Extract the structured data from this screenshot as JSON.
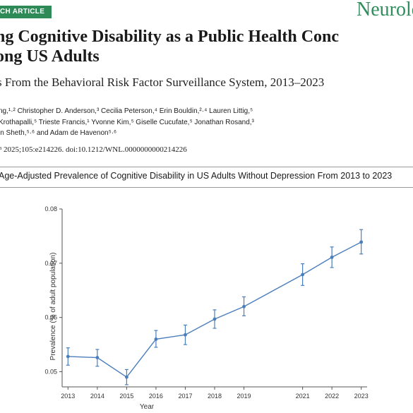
{
  "article": {
    "badge": "CH ARTICLE",
    "journal": "Neurolo",
    "title_line1": "ng Cognitive Disability as a Public Health Conc",
    "title_line2": "ong US Adults",
    "subtitle": "s From the Behavioral Risk Factor Surveillance System, 2013–2023",
    "authors_line1": "ng,¹·² Christopher D. Anderson,³ Cecilia Peterson,⁴ Erin Bouldin,²·⁴ Lauren Littig,⁵",
    "authors_line2": "Krothapalli,⁵ Trieste Francis,¹ Yvonne Kim,⁵ Giselle Cucufate,⁵ Jonathan Rosand,³",
    "authors_line3": "in Sheth,⁵·⁶ and Adam de Havenon⁵·⁶",
    "citation": "ᴮ 2025;105:e214226. doi:10.1212/WNL.0000000000214226"
  },
  "figure": {
    "caption": "Age-Adjusted Prevalence of Cognitive Disability in US Adults Without Depression From 2013 to 2023"
  },
  "chart_data": {
    "type": "line",
    "title": "Age-Adjusted Prevalence of Cognitive Disability in US Adults Without Depression From 2013 to 2023",
    "xlabel": "Year",
    "ylabel": "Prevalence (% of adult population)",
    "x": [
      2013,
      2014,
      2015,
      2016,
      2017,
      2018,
      2019,
      2021,
      2022,
      2023
    ],
    "xticks": [
      "2013",
      "2014",
      "2015",
      "2016",
      "2017",
      "2018",
      "2019",
      "2021",
      "2022",
      "2023"
    ],
    "yticks": [
      "0.05",
      "0.06",
      "0.07",
      "0.08"
    ],
    "ylim": [
      0.0472,
      0.08
    ],
    "series": [
      {
        "values": [
          0.0528,
          0.0526,
          0.049,
          0.056,
          0.0568,
          0.0597,
          0.062,
          0.0679,
          0.0711,
          0.0739
        ],
        "lower": [
          0.0512,
          0.051,
          0.0476,
          0.0545,
          0.055,
          0.058,
          0.0603,
          0.0659,
          0.0692,
          0.0717
        ],
        "upper": [
          0.0544,
          0.0541,
          0.0504,
          0.0576,
          0.0586,
          0.0614,
          0.0638,
          0.0699,
          0.073,
          0.0762
        ]
      }
    ],
    "color": "#4a7ebb",
    "grid": false
  }
}
